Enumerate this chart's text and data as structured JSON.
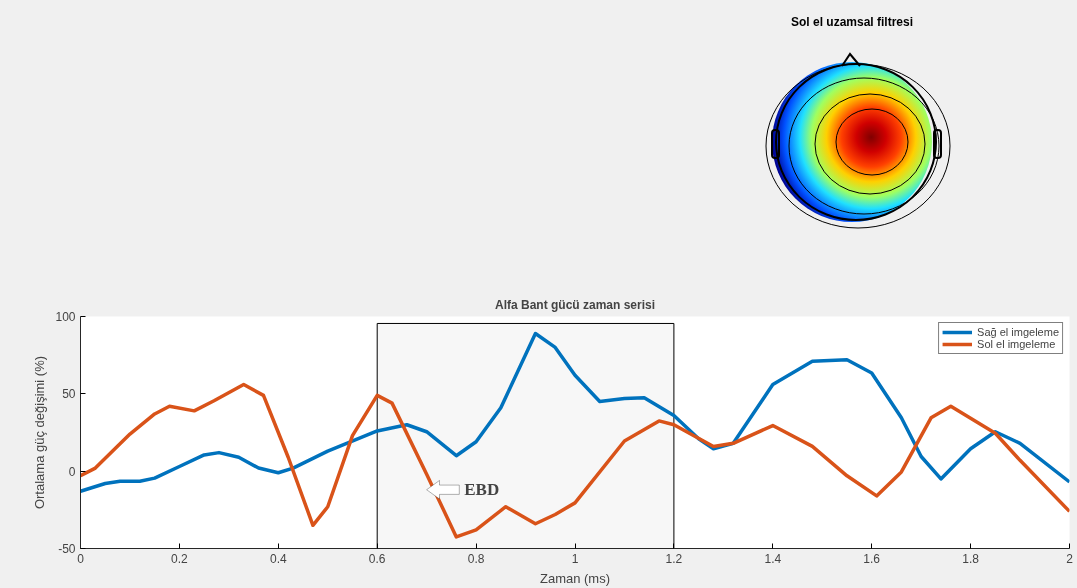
{
  "chart_data": [
    {
      "type": "other",
      "title": "Sol el uzamsal filtresi"
    },
    {
      "type": "line",
      "title": "Alfa Bant gücü zaman serisi",
      "xlabel": "Zaman (ms)",
      "ylabel": "Ortalama güç değişimi (%)",
      "xlim": [
        0,
        2
      ],
      "ylim": [
        -50,
        100
      ],
      "xticks": [
        0,
        0.2,
        0.4,
        0.6,
        0.8,
        1,
        1.2,
        1.4,
        1.6,
        1.8,
        2
      ],
      "yticks": [
        -50,
        0,
        50,
        100
      ],
      "grid": false,
      "legend": "top right",
      "line_style": "solid",
      "marker": "none",
      "series": [
        {
          "name": "Sağ el imgeleme",
          "color": "#0072bd",
          "x": [
            0,
            0.05,
            0.08,
            0.12,
            0.15,
            0.2,
            0.25,
            0.28,
            0.32,
            0.36,
            0.4,
            0.43,
            0.5,
            0.6,
            0.66,
            0.7,
            0.76,
            0.8,
            0.85,
            0.92,
            0.96,
            1.0,
            1.05,
            1.1,
            1.14,
            1.2,
            1.25,
            1.28,
            1.32,
            1.4,
            1.48,
            1.55,
            1.6,
            1.66,
            1.7,
            1.74,
            1.8,
            1.85,
            1.9,
            2.0
          ],
          "values": [
            -13,
            -8,
            -6.5,
            -6.5,
            -4.5,
            3,
            10.5,
            12,
            9,
            2,
            -1,
            2,
            13,
            26,
            30,
            25.5,
            10,
            19,
            41,
            89,
            80,
            62,
            45,
            47,
            47.5,
            36,
            21,
            14.5,
            18,
            56,
            71,
            72,
            63.5,
            34.5,
            9.5,
            -5,
            14.5,
            25.5,
            18,
            -7
          ]
        },
        {
          "name": "Sol el imgeleme",
          "color": "#d95319",
          "x": [
            0,
            0.03,
            0.1,
            0.15,
            0.18,
            0.23,
            0.27,
            0.33,
            0.37,
            0.42,
            0.47,
            0.5,
            0.55,
            0.6,
            0.63,
            0.7,
            0.76,
            0.8,
            0.86,
            0.92,
            0.96,
            1.0,
            1.1,
            1.17,
            1.2,
            1.28,
            1.32,
            1.4,
            1.48,
            1.55,
            1.61,
            1.66,
            1.72,
            1.76,
            1.85,
            1.9,
            2.0
          ],
          "values": [
            -3,
            2,
            24,
            37,
            42,
            39,
            45.5,
            56,
            49,
            9,
            -35,
            -23,
            23,
            49,
            44,
            -2,
            -42.5,
            -38,
            -23,
            -34,
            -28,
            -20.5,
            19.5,
            32.5,
            30,
            16,
            18,
            29.5,
            16,
            -3,
            -16,
            -0.5,
            34.5,
            42,
            24.5,
            7,
            -26
          ]
        }
      ],
      "bands": [
        {
          "axis": "x",
          "from": 0.6,
          "to": 1.2,
          "color": "#f7f7f7"
        }
      ],
      "annotations": [
        {
          "text": "EBD",
          "x": 0.7,
          "y": -12
        }
      ]
    }
  ]
}
